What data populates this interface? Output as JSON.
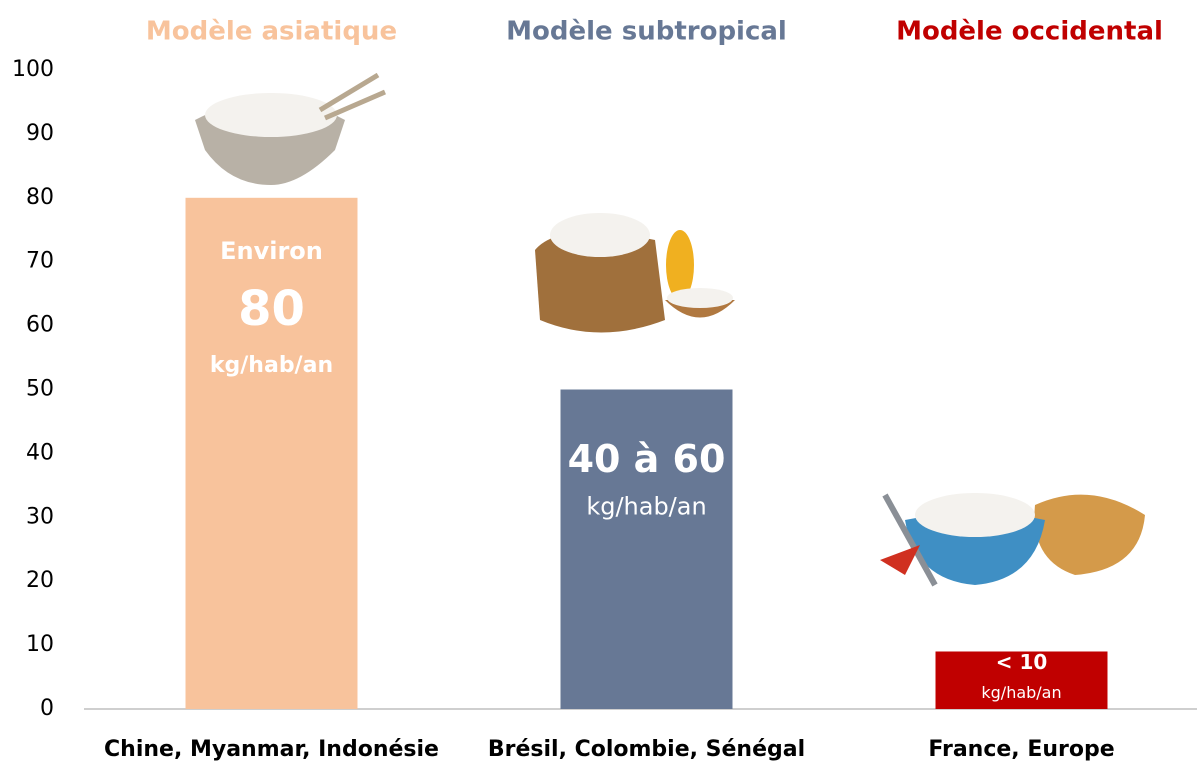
{
  "chart_data": {
    "type": "bar",
    "groups": [
      "Modèle asiatique",
      "Modèle subtropical",
      "Modèle occidental"
    ],
    "categories": [
      "Chine, Myanmar, Indonésie",
      "Brésil, Colombie, Sénégal",
      "France, Europe"
    ],
    "values": [
      80,
      50,
      9
    ],
    "colors": [
      "#f8c39c",
      "#677895",
      "#c00000"
    ],
    "annotations": [
      [
        "Environ",
        "80",
        "kg/hab/an"
      ],
      [
        "40 à 60",
        "kg/hab/an"
      ],
      [
        "< 10",
        "kg/hab/an"
      ]
    ],
    "ylim": [
      0,
      100
    ],
    "yticks": [
      0,
      10,
      20,
      30,
      40,
      50,
      60,
      70,
      80,
      90,
      100
    ],
    "grid": false
  }
}
